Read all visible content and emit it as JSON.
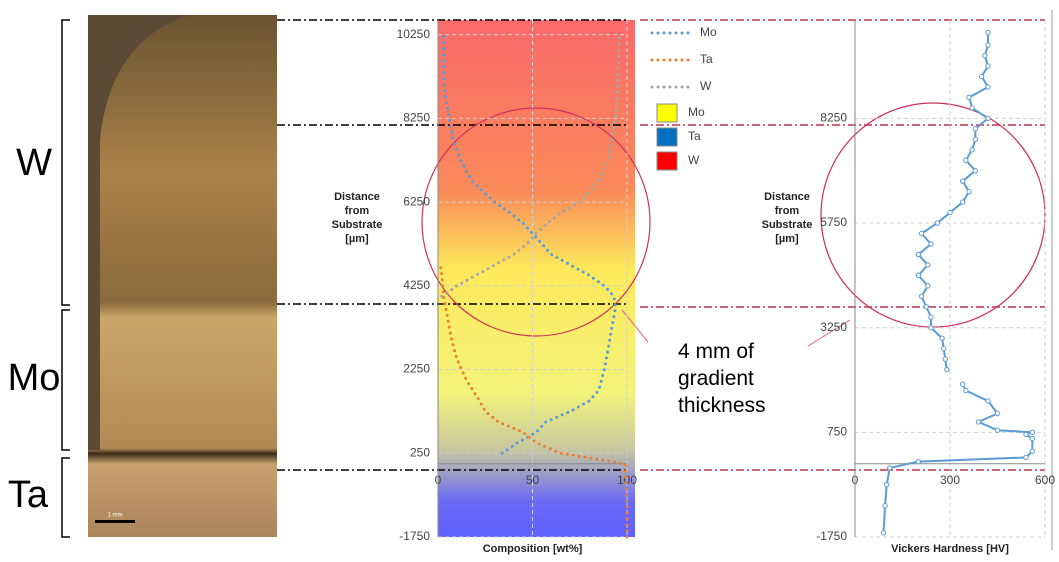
{
  "micrograph": {
    "regions": [
      "W",
      "Mo",
      "Ta"
    ],
    "scale_bar": "1 mm"
  },
  "annotation": "4 mm of gradient thickness",
  "chart_data": [
    {
      "type": "line",
      "line_style": "dotted",
      "xlabel": "Composition [wt%]",
      "ylabel": "Distance from Substrate [µm]",
      "xlim": [
        0,
        100
      ],
      "ylim": [
        -1750,
        10600
      ],
      "xticks": [
        0,
        50,
        100
      ],
      "yticks": [
        -1750,
        250,
        2250,
        4250,
        6250,
        8250,
        10250
      ],
      "grid": true,
      "series": [
        {
          "name": "Mo",
          "color": "#5b9bd5",
          "y": [
            250,
            500,
            750,
            1000,
            1250,
            1500,
            1750,
            2250,
            2750,
            3250,
            3750,
            4000,
            4250,
            4500,
            4750,
            5000,
            5250,
            5500,
            5750,
            6000,
            6250,
            6750,
            7250,
            7750,
            8250,
            8750,
            9250,
            9750,
            10300
          ],
          "x": [
            34,
            42,
            52,
            57,
            70,
            80,
            85,
            88,
            90,
            92,
            94,
            93,
            88,
            80,
            70,
            60,
            55,
            50,
            45,
            38,
            30,
            18,
            12,
            8,
            6,
            4,
            3,
            3,
            3
          ]
        },
        {
          "name": "Ta",
          "color": "#ed7d31",
          "y": [
            -1750,
            -1000,
            0,
            250,
            500,
            750,
            1000,
            1250,
            1500,
            2000,
            2500,
            3000,
            3500,
            4000,
            4500,
            4800
          ],
          "x": [
            100,
            100,
            99,
            65,
            52,
            45,
            32,
            25,
            22,
            15,
            10,
            7,
            5,
            3,
            2,
            1
          ]
        },
        {
          "name": "W",
          "color": "#a5a5a5",
          "y": [
            4000,
            4250,
            4500,
            4750,
            5000,
            5250,
            5500,
            5750,
            6000,
            6250,
            6750,
            7250,
            7750,
            8250,
            9000,
            10300
          ],
          "x": [
            2,
            10,
            20,
            30,
            40,
            47,
            52,
            58,
            65,
            75,
            85,
            90,
            92,
            94,
            95,
            96
          ]
        }
      ],
      "legend_patches": [
        {
          "name": "Mo",
          "color": "#ffff00"
        },
        {
          "name": "Ta",
          "color": "#0070c0"
        },
        {
          "name": "W",
          "color": "#ff0000"
        }
      ]
    },
    {
      "type": "line",
      "line_style": "solid",
      "xlabel": "Vickers Hardness [HV]",
      "ylabel": "Distance from Substrate [µm]",
      "xlim": [
        0,
        600
      ],
      "ylim": [
        -1750,
        10600
      ],
      "xticks": [
        0,
        300,
        600
      ],
      "yticks": [
        -1750,
        750,
        3250,
        5750,
        8250
      ],
      "grid": true,
      "series": [
        {
          "color": "#5b9bd5",
          "y": [
            -1650,
            -1000,
            -500,
            -100,
            50,
            150,
            300,
            600,
            700,
            750,
            800,
            1000,
            1200,
            1500,
            1750,
            1900,
            2000,
            2250,
            2500,
            2750,
            3000,
            3250,
            3500,
            3750,
            4000,
            4250,
            4500,
            4750,
            5000,
            5250,
            5500,
            5750,
            6000,
            6250,
            6500,
            6750,
            7000,
            7250,
            7500,
            7750,
            8000,
            8250,
            8500,
            8750,
            9000,
            9250,
            9500,
            9750,
            10000,
            10300
          ],
          "x": [
            90,
            95,
            100,
            110,
            200,
            540,
            560,
            560,
            540,
            560,
            450,
            390,
            450,
            420,
            350,
            340,
            null,
            290,
            285,
            280,
            275,
            240,
            240,
            225,
            210,
            230,
            200,
            230,
            200,
            240,
            210,
            260,
            300,
            340,
            360,
            340,
            380,
            350,
            370,
            380,
            380,
            420,
            370,
            360,
            420,
            400,
            420,
            410,
            420,
            420
          ]
        }
      ]
    }
  ]
}
